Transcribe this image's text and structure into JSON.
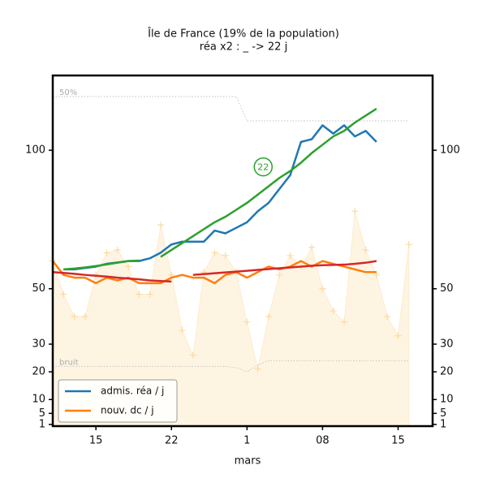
{
  "chart_data": {
    "type": "line",
    "title": "Île de France (19% de la population)",
    "subtitle": "réa x2 : _ -> 22 j",
    "x_label": "mars",
    "x": [
      0,
      1,
      2,
      3,
      4,
      5,
      6,
      7,
      8,
      9,
      10,
      11,
      12,
      13,
      14,
      15,
      16,
      17,
      18,
      19,
      20,
      21,
      22,
      23,
      24,
      25,
      26,
      27,
      28,
      29,
      30,
      31,
      32,
      33
    ],
    "xlim": [
      0,
      35.2
    ],
    "xticks": [
      {
        "value": 4,
        "label": "15"
      },
      {
        "value": 11,
        "label": "22"
      },
      {
        "value": 18,
        "label": "1"
      },
      {
        "value": 25,
        "label": "08"
      },
      {
        "value": 32,
        "label": "15"
      }
    ],
    "ylim": [
      0.4,
      127
    ],
    "yticks": [
      1,
      5,
      10,
      20,
      30,
      50,
      100
    ],
    "legend": "lower left",
    "series": [
      {
        "name": "admis. réa / j",
        "color": "#1f77b4",
        "values": [
          null,
          57,
          57,
          57.5,
          58,
          59,
          59.5,
          60,
          60,
          61,
          63,
          66,
          67,
          67,
          67,
          71,
          70,
          72,
          74,
          78,
          81,
          86,
          91,
          103,
          104,
          109,
          106,
          109,
          105,
          107,
          103,
          null,
          null,
          null
        ]
      },
      {
        "name": "nouv. dc / j",
        "color": "#ff7f0e",
        "values": [
          60,
          55,
          54,
          54,
          52,
          54,
          53,
          54,
          52,
          52,
          52,
          54,
          55,
          54,
          54,
          52,
          55,
          56,
          54,
          56,
          58,
          57,
          58,
          60,
          58,
          60,
          59,
          58,
          57,
          56,
          56,
          null,
          null,
          null
        ]
      },
      {
        "color": "#d62728",
        "values": [
          56,
          55.7,
          55.4,
          55,
          54.7,
          54.4,
          54,
          53.7,
          53.4,
          53,
          52.8,
          52.6,
          null,
          55,
          55.3,
          55.6,
          55.9,
          56.2,
          56.5,
          56.8,
          57.1,
          57.4,
          57.7,
          58,
          58.3,
          58.5,
          58.6,
          58.7,
          59,
          59.4,
          60,
          null,
          null,
          null
        ]
      },
      {
        "color": "#2ca02c",
        "values": [
          null,
          57,
          57.3,
          57.7,
          58.2,
          58.8,
          59.4,
          60,
          60.2,
          null,
          61.5,
          64,
          66.5,
          69,
          71.5,
          74,
          76,
          78.5,
          81,
          84,
          87,
          90,
          92.5,
          95.5,
          99,
          102,
          105,
          107,
          110,
          112.5,
          115,
          null,
          null,
          null
        ]
      }
    ],
    "background": {
      "color": "#fdd9a0",
      "values": [
        60,
        48,
        40,
        40,
        55,
        63,
        64,
        58,
        48,
        48,
        73,
        55,
        35,
        26,
        56,
        63,
        62,
        56,
        38,
        21,
        40,
        55,
        62,
        58,
        65,
        50,
        42,
        38,
        78,
        64,
        55,
        40,
        33,
        66
      ]
    },
    "reference_lines": [
      {
        "label": "50%",
        "color": "#bbb",
        "values": [
          119.4,
          119.4,
          119.4,
          119.4,
          119.4,
          119.4,
          119.4,
          119.4,
          119.4,
          119.4,
          119.4,
          119.4,
          119.4,
          119.4,
          119.4,
          119.4,
          119.4,
          119.4,
          110.6,
          110.6,
          110.6,
          110.6,
          110.6,
          110.6,
          110.6,
          110.6,
          110.6,
          110.6,
          110.6,
          110.6,
          110.6,
          110.6,
          110.6,
          110.6
        ]
      },
      {
        "label": "bruit",
        "color": "#bbb",
        "values": [
          22,
          22,
          22,
          22,
          22,
          22,
          22,
          22,
          22,
          22,
          22,
          22,
          22,
          22,
          22,
          22,
          22,
          21.5,
          20,
          22.5,
          24,
          24,
          24,
          24,
          24,
          24,
          24,
          24,
          24,
          24,
          24,
          24,
          24,
          24
        ]
      }
    ],
    "annotations": [
      {
        "text": "22",
        "x": 19.5,
        "y": 94,
        "color": "#2ca02c"
      }
    ]
  }
}
